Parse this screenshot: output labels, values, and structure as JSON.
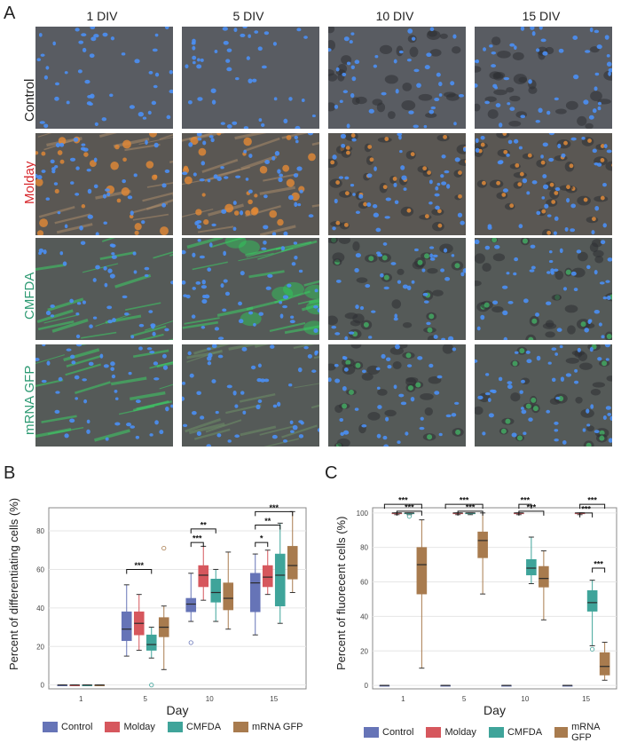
{
  "panelA": {
    "letter": "A",
    "columns": [
      "1 DIV",
      "5 DIV",
      "10 DIV",
      "15 DIV"
    ],
    "rows": [
      {
        "label": "Control",
        "color": "#222222",
        "tint": "none"
      },
      {
        "label": "Molday",
        "color": "#d7262b",
        "tint": "orange"
      },
      {
        "label": "CMFDA",
        "color": "#2e9a73",
        "tint": "green"
      },
      {
        "label": "mRNA GFP",
        "color": "#2e9a73",
        "tint": "green"
      }
    ]
  },
  "panelB": {
    "letter": "B"
  },
  "panelC": {
    "letter": "C"
  },
  "legend": [
    {
      "name": "Control",
      "color": "#6674b7"
    },
    {
      "name": "Molday",
      "color": "#d6575d"
    },
    {
      "name": "CMFDA",
      "color": "#3fa49a"
    },
    {
      "name": "mRNA GFP",
      "color": "#a87b4e"
    }
  ],
  "chart_data": [
    {
      "type": "box",
      "panel": "B",
      "ylabel": "Percent of differentiating cells (%)",
      "xlabel": "Day",
      "categories": [
        "1",
        "5",
        "10",
        "15"
      ],
      "ylim": [
        -2,
        92
      ],
      "yticks": [
        0,
        20,
        40,
        60,
        80
      ],
      "grid": true,
      "series": [
        {
          "name": "Control",
          "boxes": [
            {
              "min": 0,
              "q1": 0,
              "median": 0,
              "q3": 0,
              "max": 0
            },
            {
              "min": 15,
              "q1": 23,
              "median": 29,
              "q3": 38,
              "max": 52
            },
            {
              "min": 33,
              "q1": 38,
              "median": 42,
              "q3": 45,
              "max": 58,
              "outliers": [
                22
              ]
            },
            {
              "min": 26,
              "q1": 38,
              "median": 53,
              "q3": 58,
              "max": 68
            }
          ]
        },
        {
          "name": "Molday",
          "boxes": [
            {
              "min": 0,
              "q1": 0,
              "median": 0,
              "q3": 0,
              "max": 0
            },
            {
              "min": 18,
              "q1": 26,
              "median": 32,
              "q3": 38,
              "max": 47
            },
            {
              "min": 44,
              "q1": 51,
              "median": 57,
              "q3": 62,
              "max": 72
            },
            {
              "min": 47,
              "q1": 51,
              "median": 56,
              "q3": 62,
              "max": 70
            }
          ]
        },
        {
          "name": "CMFDA",
          "boxes": [
            {
              "min": 0,
              "q1": 0,
              "median": 0,
              "q3": 0,
              "max": 0
            },
            {
              "min": 14,
              "q1": 18,
              "median": 21,
              "q3": 26,
              "max": 30,
              "outliers": [
                0
              ]
            },
            {
              "min": 33,
              "q1": 43,
              "median": 48,
              "q3": 55,
              "max": 60
            },
            {
              "min": 32,
              "q1": 41,
              "median": 57,
              "q3": 68,
              "max": 84
            }
          ]
        },
        {
          "name": "mRNA GFP",
          "boxes": [
            {
              "min": 0,
              "q1": 0,
              "median": 0,
              "q3": 0,
              "max": 0
            },
            {
              "min": 8,
              "q1": 25,
              "median": 30,
              "q3": 35,
              "max": 41,
              "outliers": [
                71
              ]
            },
            {
              "min": 29,
              "q1": 39,
              "median": 45,
              "q3": 53,
              "max": 69
            },
            {
              "min": 48,
              "q1": 55,
              "median": 62,
              "q3": 72,
              "max": 90
            }
          ]
        }
      ],
      "significance": [
        {
          "day": "5",
          "from": "Control",
          "to": "CMFDA",
          "label": "***",
          "y": 60
        },
        {
          "day": "10",
          "from": "Control",
          "to": "Molday",
          "label": "***",
          "y": 74
        },
        {
          "day": "10",
          "from": "Control",
          "to": "CMFDA",
          "label": "**",
          "y": 81
        },
        {
          "day": "15",
          "from": "Control",
          "to": "Molday",
          "label": "*",
          "y": 74
        },
        {
          "day": "15",
          "from": "Control",
          "to": "CMFDA",
          "label": "**",
          "y": 83
        },
        {
          "day": "15",
          "from": "Control",
          "to": "mRNA GFP",
          "label": "***",
          "y": 90
        }
      ]
    },
    {
      "type": "box",
      "panel": "C",
      "ylabel": "Percent of fluorecent cells (%)",
      "xlabel": "Day",
      "categories": [
        "1",
        "5",
        "10",
        "15"
      ],
      "ylim": [
        -2,
        103
      ],
      "yticks": [
        0,
        20,
        40,
        60,
        80,
        100
      ],
      "grid": true,
      "series": [
        {
          "name": "Control",
          "boxes": [
            {
              "min": 0,
              "q1": 0,
              "median": 0,
              "q3": 0,
              "max": 0
            },
            {
              "min": 0,
              "q1": 0,
              "median": 0,
              "q3": 0,
              "max": 0
            },
            {
              "min": 0,
              "q1": 0,
              "median": 0,
              "q3": 0,
              "max": 0
            },
            {
              "min": 0,
              "q1": 0,
              "median": 0,
              "q3": 0,
              "max": 0
            }
          ]
        },
        {
          "name": "Molday",
          "boxes": [
            {
              "min": 99,
              "q1": 99.5,
              "median": 100,
              "q3": 100,
              "max": 100
            },
            {
              "min": 99,
              "q1": 99.5,
              "median": 100,
              "q3": 100,
              "max": 100
            },
            {
              "min": 99,
              "q1": 99.5,
              "median": 100,
              "q3": 100,
              "max": 100
            },
            {
              "min": 99,
              "q1": 99.5,
              "median": 100,
              "q3": 100,
              "max": 100
            }
          ]
        },
        {
          "name": "CMFDA",
          "boxes": [
            {
              "min": 99,
              "q1": 99.5,
              "median": 100,
              "q3": 100,
              "max": 100,
              "outliers": [
                98
              ]
            },
            {
              "min": 99,
              "q1": 99.5,
              "median": 100,
              "q3": 100,
              "max": 100
            },
            {
              "min": 59,
              "q1": 64,
              "median": 68,
              "q3": 73,
              "max": 86
            },
            {
              "min": 23,
              "q1": 43,
              "median": 48,
              "q3": 55,
              "max": 61,
              "outliers": [
                21
              ]
            }
          ]
        },
        {
          "name": "mRNA GFP",
          "boxes": [
            {
              "min": 10,
              "q1": 53,
              "median": 70,
              "q3": 80,
              "max": 96
            },
            {
              "min": 53,
              "q1": 74,
              "median": 84,
              "q3": 89,
              "max": 100
            },
            {
              "min": 38,
              "q1": 57,
              "median": 62,
              "q3": 69,
              "max": 78
            },
            {
              "min": 3,
              "q1": 6,
              "median": 11,
              "q3": 19,
              "max": 25
            }
          ]
        }
      ],
      "significance": [
        {
          "day": "1",
          "from": "Control",
          "to": "mRNA GFP",
          "label": "***",
          "y": 105
        },
        {
          "day": "1",
          "from": "Molday",
          "to": "mRNA GFP",
          "label": "***",
          "y": 101
        },
        {
          "day": "5",
          "from": "Control",
          "to": "mRNA GFP",
          "label": "***",
          "y": 105
        },
        {
          "day": "5",
          "from": "Molday",
          "to": "mRNA GFP",
          "label": "***",
          "y": 101
        },
        {
          "day": "10",
          "from": "Molday",
          "to": "CMFDA",
          "label": "***",
          "y": 105
        },
        {
          "day": "10",
          "from": "Molday",
          "to": "mRNA GFP",
          "label": "***",
          "y": 101
        },
        {
          "day": "15",
          "from": "Molday",
          "to": "mRNA GFP",
          "label": "***",
          "y": 105
        },
        {
          "day": "15",
          "from": "Molday",
          "to": "CMFDA",
          "label": "***",
          "y": 100
        },
        {
          "day": "15",
          "from": "CMFDA",
          "to": "mRNA GFP",
          "label": "***",
          "y": 68
        }
      ]
    }
  ]
}
